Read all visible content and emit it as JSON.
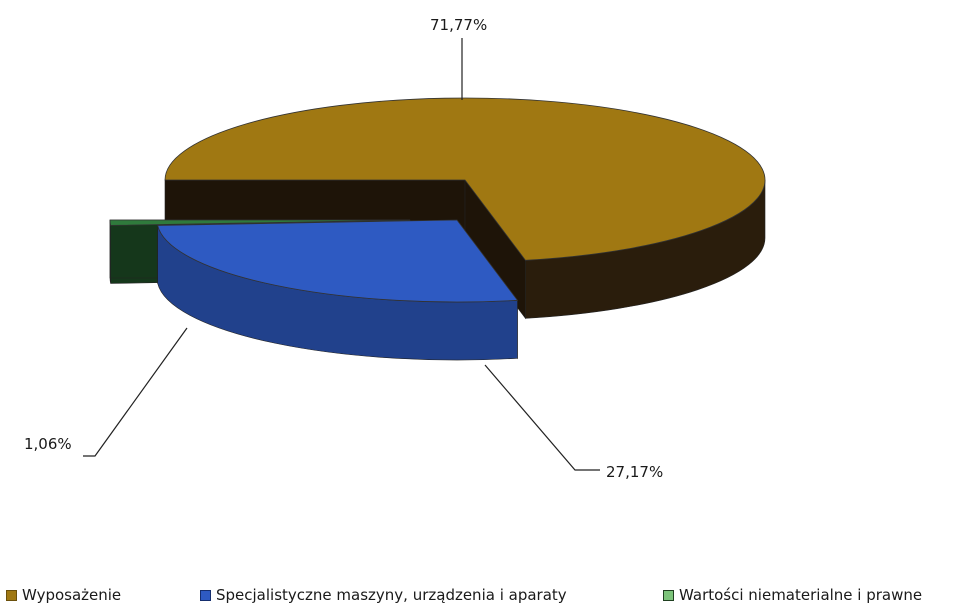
{
  "chart_data": {
    "type": "pie",
    "title": "",
    "slices": [
      {
        "label": "Wyposażenie",
        "value": 71.77,
        "value_label": "71,77%",
        "color": "#A07812",
        "swatch_color": "#A07812"
      },
      {
        "label": "Specjalistyczne maszyny, urządzenia i aparaty",
        "value": 27.17,
        "value_label": "27,17%",
        "color": "#2E5AC2",
        "swatch_color": "#2E5AC2"
      },
      {
        "label": "Wartości niematerialne i prawne",
        "value": 1.06,
        "value_label": "1,06%",
        "color": "#2F7A3C",
        "swatch_color": "#7CC47A"
      }
    ],
    "legend_position": "bottom",
    "style": "3D exploded pie"
  }
}
